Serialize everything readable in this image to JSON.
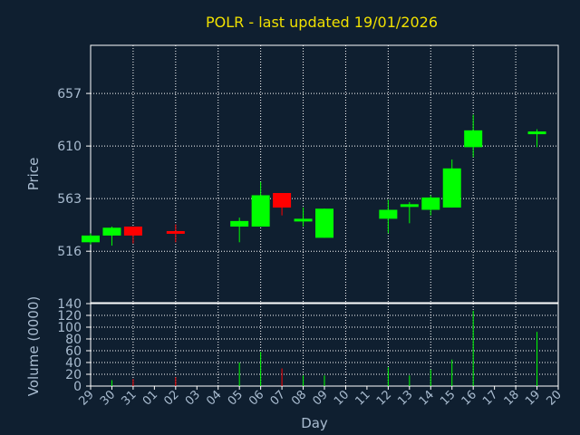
{
  "chart_data": {
    "type": "candlestick",
    "title": "POLR - last updated 19/01/2026",
    "xlabel": "Day",
    "price_ylabel": "Price",
    "volume_ylabel": "Volume (0000)",
    "x_tick_labels": [
      "29",
      "30",
      "31",
      "01",
      "02",
      "03",
      "04",
      "05",
      "06",
      "07",
      "08",
      "09",
      "10",
      "11",
      "12",
      "13",
      "14",
      "15",
      "16",
      "17",
      "18",
      "19",
      "20"
    ],
    "price_ticks": [
      516,
      563,
      610,
      657
    ],
    "price_ylim": [
      470,
      700
    ],
    "volume_ticks": [
      0,
      20,
      40,
      60,
      80,
      100,
      120,
      140
    ],
    "volume_ylim": [
      0,
      140
    ],
    "grid": true,
    "colors": {
      "up": "#00ff00",
      "down": "#ff0000",
      "background": "#0f1f30",
      "title": "#f0e000",
      "text": "#a9bcd0"
    },
    "candles": [
      {
        "day": "29",
        "idx": 0,
        "open": 524,
        "high": 532,
        "low": 522,
        "close": 530,
        "volume": 0
      },
      {
        "day": "30",
        "idx": 1,
        "open": 530,
        "high": 538,
        "low": 521,
        "close": 537,
        "volume": 10
      },
      {
        "day": "31",
        "idx": 2,
        "open": 538,
        "high": 538,
        "low": 523,
        "close": 530,
        "volume": 12
      },
      {
        "day": "02",
        "idx": 4,
        "open": 534,
        "high": 540,
        "low": 524,
        "close": 532,
        "volume": 15
      },
      {
        "day": "05",
        "idx": 7,
        "open": 538,
        "high": 546,
        "low": 524,
        "close": 543,
        "volume": 40
      },
      {
        "day": "06",
        "idx": 8,
        "open": 538,
        "high": 578,
        "low": 538,
        "close": 566,
        "volume": 58
      },
      {
        "day": "07",
        "idx": 9,
        "open": 568,
        "high": 568,
        "low": 548,
        "close": 555,
        "volume": 30
      },
      {
        "day": "08",
        "idx": 10,
        "open": 543,
        "high": 555,
        "low": 538,
        "close": 545,
        "volume": 18
      },
      {
        "day": "09",
        "idx": 11,
        "open": 528,
        "high": 554,
        "low": 528,
        "close": 554,
        "volume": 18
      },
      {
        "day": "12",
        "idx": 14,
        "open": 545,
        "high": 562,
        "low": 532,
        "close": 553,
        "volume": 32
      },
      {
        "day": "13",
        "idx": 15,
        "open": 557,
        "high": 560,
        "low": 541,
        "close": 558,
        "volume": 18
      },
      {
        "day": "14",
        "idx": 16,
        "open": 553,
        "high": 566,
        "low": 548,
        "close": 564,
        "volume": 28
      },
      {
        "day": "15",
        "idx": 17,
        "open": 555,
        "high": 598,
        "low": 555,
        "close": 590,
        "volume": 45
      },
      {
        "day": "16",
        "idx": 18,
        "open": 609,
        "high": 638,
        "low": 600,
        "close": 624,
        "volume": 128
      },
      {
        "day": "19",
        "idx": 21,
        "open": 621,
        "high": 625,
        "low": 609,
        "close": 623,
        "volume": 92
      }
    ]
  }
}
